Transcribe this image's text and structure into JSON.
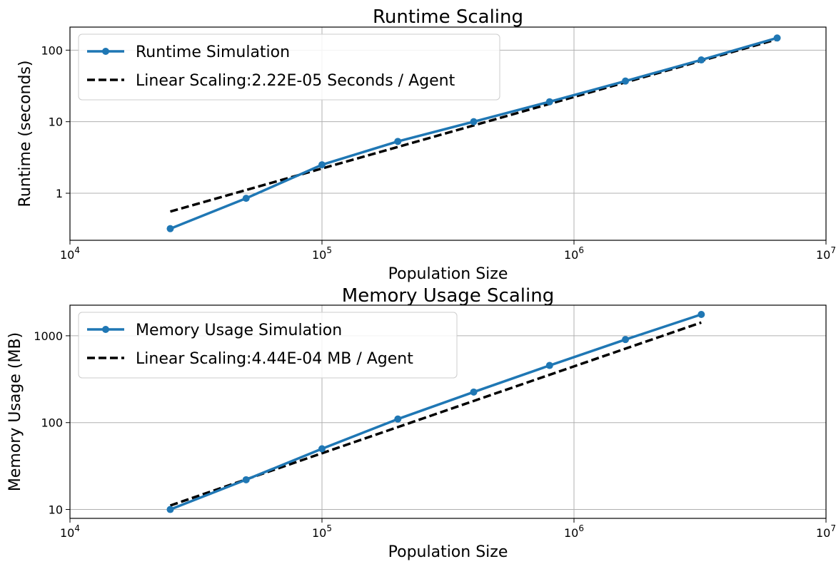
{
  "chart_data": [
    {
      "type": "line",
      "title": "Runtime Scaling",
      "xlabel": "Population Size",
      "ylabel": "Runtime (seconds)",
      "xscale": "log",
      "yscale": "log",
      "xlim": [
        10000,
        10000000
      ],
      "ylim": [
        0.22,
        210
      ],
      "grid": true,
      "legend_position": "top-left",
      "x_ticks": [
        {
          "value": 10000,
          "base": "10",
          "exp": "4"
        },
        {
          "value": 100000,
          "base": "10",
          "exp": "5"
        },
        {
          "value": 1000000,
          "base": "10",
          "exp": "6"
        },
        {
          "value": 10000000,
          "base": "10",
          "exp": "7"
        }
      ],
      "y_ticks": [
        {
          "value": 1,
          "label": "1"
        },
        {
          "value": 10,
          "label": "10"
        },
        {
          "value": 100,
          "label": "100"
        }
      ],
      "series": [
        {
          "name": "Runtime Simulation",
          "style": "solid-marker",
          "color": "#1f77b4",
          "x": [
            25000,
            50000,
            100000,
            200000,
            400000,
            800000,
            1600000,
            3200000,
            6400000
          ],
          "y": [
            0.32,
            0.85,
            2.5,
            5.3,
            10,
            19,
            37,
            73,
            148
          ]
        },
        {
          "name": "Linear Scaling:2.22E-05 Seconds / Agent",
          "style": "dashed",
          "color": "#000000",
          "x": [
            25000,
            6400000
          ],
          "y": [
            0.555,
            142
          ]
        }
      ]
    },
    {
      "type": "line",
      "title": "Memory Usage Scaling",
      "xlabel": "Population Size",
      "ylabel": "Memory Usage (MB)",
      "xscale": "log",
      "yscale": "log",
      "xlim": [
        10000,
        10000000
      ],
      "ylim": [
        7.9,
        2250
      ],
      "grid": true,
      "legend_position": "top-left",
      "x_ticks": [
        {
          "value": 10000,
          "base": "10",
          "exp": "4"
        },
        {
          "value": 100000,
          "base": "10",
          "exp": "5"
        },
        {
          "value": 1000000,
          "base": "10",
          "exp": "6"
        },
        {
          "value": 10000000,
          "base": "10",
          "exp": "7"
        }
      ],
      "y_ticks": [
        {
          "value": 10,
          "label": "10"
        },
        {
          "value": 100,
          "label": "100"
        },
        {
          "value": 1000,
          "label": "1000"
        }
      ],
      "series": [
        {
          "name": "Memory Usage Simulation",
          "style": "solid-marker",
          "color": "#1f77b4",
          "x": [
            25000,
            50000,
            100000,
            200000,
            400000,
            800000,
            1600000,
            3200000
          ],
          "y": [
            10,
            22,
            50,
            110,
            225,
            455,
            905,
            1760
          ]
        },
        {
          "name": "Linear Scaling:4.44E-04 MB / Agent",
          "style": "dashed",
          "color": "#000000",
          "x": [
            25000,
            3200000
          ],
          "y": [
            11.1,
            1420
          ]
        }
      ]
    }
  ]
}
